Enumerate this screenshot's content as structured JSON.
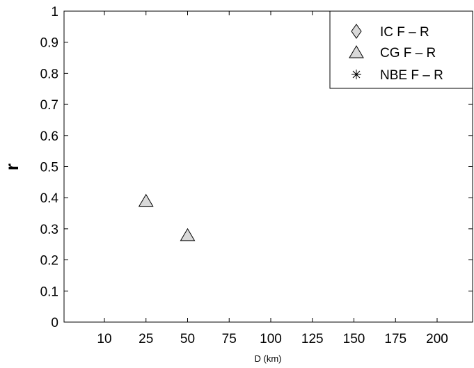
{
  "chart_data": {
    "type": "scatter",
    "xlabel": "D (km)",
    "ylabel": "r",
    "categories": [
      "10",
      "25",
      "50",
      "75",
      "100",
      "125",
      "150",
      "175",
      "200"
    ],
    "ylim": [
      0,
      1
    ],
    "yticks": [
      "0",
      "0.1",
      "0.2",
      "0.3",
      "0.4",
      "0.5",
      "0.6",
      "0.7",
      "0.8",
      "0.9",
      "1"
    ],
    "grid": false,
    "legend_position": "top-right",
    "marker_fill": "#d9d9d9",
    "series": [
      {
        "name": "IC F – R",
        "marker": "diamond",
        "points": []
      },
      {
        "name": "CG F – R",
        "marker": "triangle",
        "points": [
          {
            "x": "25",
            "y": 0.39
          },
          {
            "x": "50",
            "y": 0.28
          }
        ]
      },
      {
        "name": "NBE F – R",
        "marker": "asterisk",
        "points": []
      }
    ]
  }
}
